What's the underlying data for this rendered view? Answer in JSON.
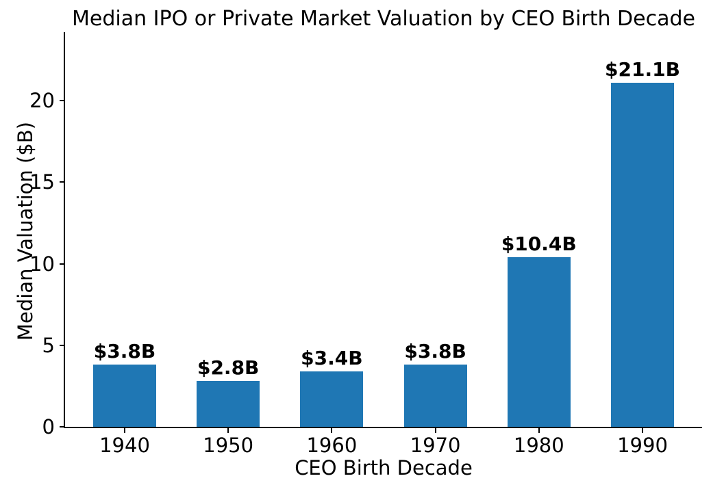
{
  "chart_data": {
    "type": "bar",
    "title": "Median IPO or Private Market Valuation by CEO Birth Decade",
    "xlabel": "CEO Birth Decade",
    "ylabel": "Median Valuation ($B)",
    "categories": [
      "1940",
      "1950",
      "1960",
      "1970",
      "1980",
      "1990"
    ],
    "values": [
      3.8,
      2.8,
      3.4,
      3.8,
      10.4,
      21.1
    ],
    "bar_labels": [
      "$3.8B",
      "$2.8B",
      "$3.4B",
      "$3.8B",
      "$10.4B",
      "$21.1B"
    ],
    "yticks": [
      0,
      5,
      10,
      15,
      20
    ],
    "ylim": [
      0,
      24.2
    ],
    "bar_color": "#1f77b4",
    "text_color": "#000000",
    "background_color": "#ffffff",
    "grid": false,
    "legend": "none",
    "spines": [
      "left",
      "bottom"
    ]
  }
}
